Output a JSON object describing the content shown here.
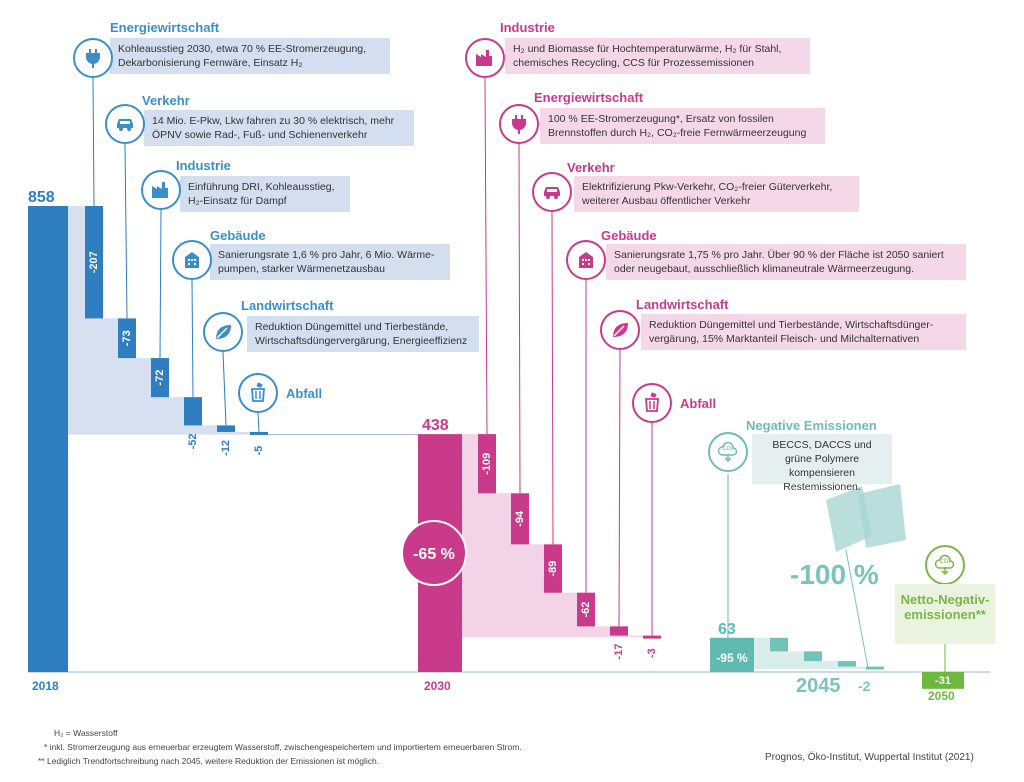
{
  "chart_data": {
    "type": "bar",
    "years": {
      "start": "2018",
      "mid": "2030",
      "end": "2045",
      "final": "2050"
    },
    "totals": {
      "start": 858,
      "mid": 438,
      "end": 63,
      "final": -31
    },
    "percent_labels": {
      "mid": "-65 %",
      "end": "-95 %",
      "full": "-100 %"
    },
    "phase1_steps": [
      {
        "value": -207,
        "label": "-207"
      },
      {
        "value": -73,
        "label": "-73"
      },
      {
        "value": -72,
        "label": "-72"
      },
      {
        "value": -52,
        "label": "-52"
      },
      {
        "value": -12,
        "label": "-12"
      },
      {
        "value": -5,
        "label": "-5"
      }
    ],
    "phase2_steps": [
      {
        "value": -109,
        "label": "-109"
      },
      {
        "value": -94,
        "label": "-94"
      },
      {
        "value": -89,
        "label": "-89"
      },
      {
        "value": -62,
        "label": "-62"
      },
      {
        "value": -17,
        "label": "-17"
      },
      {
        "value": -3,
        "label": "-3"
      }
    ],
    "phase3_steps": [
      -25,
      -18,
      -10,
      -5
    ],
    "phase3_last_label": "-2",
    "colors": {
      "phase1": "#2f7ec0",
      "phase1_light": "#d6e0f1",
      "phase2": "#c93a8a",
      "phase2_light": "#f2d4e6",
      "phase3": "#5fbab2",
      "phase3_light": "#d9eeec",
      "net_negative": "#6fb83f"
    }
  },
  "annotations": {
    "phase1": [
      {
        "title": "Energiewirtschaft",
        "icon": "plug-icon",
        "text": "Kohleausstieg 2030, etwa 70 % EE-Stromerzeugung, Dekarbonisierung Fernwäre, Einsatz H₂"
      },
      {
        "title": "Verkehr",
        "icon": "car-icon",
        "text": "14 Mio. E-Pkw, Lkw fahren zu 30 % elektrisch, mehr ÖPNV sowie Rad-, Fuß- und Schienenverkehr"
      },
      {
        "title": "Industrie",
        "icon": "factory-icon",
        "text": "Einführung DRI, Kohleausstieg, H₂-Einsatz für Dampf"
      },
      {
        "title": "Gebäude",
        "icon": "building-icon",
        "text": "Sanierungsrate 1,6 % pro Jahr, 6 Mio. Wärme-pumpen, starker Wärmenetzausbau"
      },
      {
        "title": "Landwirtschaft",
        "icon": "leaf-icon",
        "text": "Reduktion Düngemittel und Tierbestände, Wirtschaftsdüngervergärung, Energieeffizienz"
      },
      {
        "title": "Abfall",
        "icon": "trash-icon",
        "text": ""
      }
    ],
    "phase2": [
      {
        "title": "Industrie",
        "icon": "factory-icon",
        "text": "H₂ und Biomasse für Hochtemperaturwärme, H₂ für Stahl, chemisches Recycling, CCS für Prozessemissionen"
      },
      {
        "title": "Energiewirtschaft",
        "icon": "plug-icon",
        "text": "100 % EE-Stromerzeugung*, Ersatz von fossilen Brennstoffen durch H₂, CO₂-freie Fernwärmeerzeugung"
      },
      {
        "title": "Verkehr",
        "icon": "car-icon",
        "text": "Elektrifizierung Pkw-Verkehr, CO₂-freier Güterverkehr, weiterer Ausbau öffentlicher Verkehr"
      },
      {
        "title": "Gebäude",
        "icon": "building-icon",
        "text": "Sanierungsrate 1,75 % pro Jahr. Über 90 % der Fläche ist 2050 saniert oder neugebaut, ausschließlich klimaneutrale Wärmeerzeugung."
      },
      {
        "title": "Landwirtschaft",
        "icon": "leaf-icon",
        "text": "Reduktion Düngemittel und Tierbestände, Wirtschaftsdünger-vergärung, 15% Marktanteil Fleisch- und Milchalternativen"
      },
      {
        "title": "Abfall",
        "icon": "trash-icon",
        "text": ""
      }
    ],
    "negative": {
      "title": "Negative Emissionen",
      "icon": "co2-cloud-icon",
      "text": "BECCS, DACCS und grüne Polymere kompensieren Restemissionen."
    },
    "net_negative": {
      "title": "Netto-Negativ-emissionen**",
      "icon": "co2-cloud-icon"
    },
    "co2_symbol": "CO₂"
  },
  "footnotes": {
    "h2": "H₂ = Wasserstoff",
    "star": "*  inkl. Stromerzeugung aus erneuerbar erzeugtem Wasserstoff, zwischengespeichertem und importiertem erneuerbaren Strom.",
    "double_star": "**  Lediglich Trendfortschreibung nach 2045, weitere Reduktion der Emissionen ist möglich."
  },
  "source": "Prognos, Öko-Institut, Wuppertal Institut (2021)"
}
